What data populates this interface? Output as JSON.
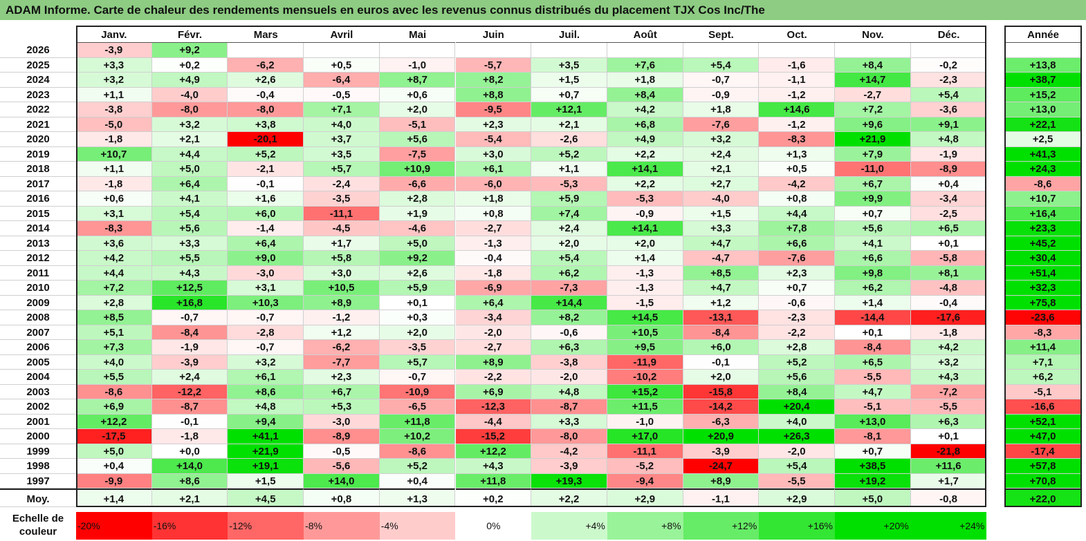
{
  "title": "ADAM Informe. Carte de chaleur des rendements mensuels en euros avec les revenus connus distribués du placement TJX Cos Inc/The",
  "chart_data": {
    "type": "heatmap",
    "title": "ADAM Informe. Carte de chaleur des rendements mensuels en euros avec les revenus connus distribués du placement TJX Cos Inc/The",
    "months": [
      "Janv.",
      "Févr.",
      "Mars",
      "Avril",
      "Mai",
      "Juin",
      "Juil.",
      "Août",
      "Sept.",
      "Oct.",
      "Nov.",
      "Déc."
    ],
    "year_header": "Année",
    "rows": [
      {
        "year": "2026",
        "months": [
          "-3,9",
          "+9,2",
          "",
          "",
          "",
          "",
          "",
          "",
          "",
          "",
          "",
          ""
        ],
        "annual": ""
      },
      {
        "year": "2025",
        "months": [
          "+3,3",
          "+0,2",
          "-6,2",
          "+0,5",
          "-1,0",
          "-5,7",
          "+3,5",
          "+7,6",
          "+5,4",
          "-1,6",
          "+8,4",
          "-0,2"
        ],
        "annual": "+13,8"
      },
      {
        "year": "2024",
        "months": [
          "+3,2",
          "+4,9",
          "+2,6",
          "-6,4",
          "+8,7",
          "+8,2",
          "+1,5",
          "+1,8",
          "-0,7",
          "-1,1",
          "+14,7",
          "-2,3"
        ],
        "annual": "+38,7"
      },
      {
        "year": "2023",
        "months": [
          "+1,1",
          "-4,0",
          "-0,4",
          "-0,5",
          "+0,6",
          "+8,8",
          "+0,7",
          "+8,4",
          "-0,9",
          "-1,2",
          "-2,7",
          "+5,4"
        ],
        "annual": "+15,2"
      },
      {
        "year": "2022",
        "months": [
          "-3,8",
          "-8,0",
          "-8,0",
          "+7,1",
          "+2,0",
          "-9,5",
          "+12,1",
          "+4,2",
          "+1,8",
          "+14,6",
          "+7,2",
          "-3,6"
        ],
        "annual": "+13,0"
      },
      {
        "year": "2021",
        "months": [
          "-5,0",
          "+3,2",
          "+3,8",
          "+4,0",
          "-5,1",
          "+2,3",
          "+2,1",
          "+6,8",
          "-7,6",
          "-1,2",
          "+9,6",
          "+9,1"
        ],
        "annual": "+22,1"
      },
      {
        "year": "2020",
        "months": [
          "-1,8",
          "+2,1",
          "-20,1",
          "+3,7",
          "+5,6",
          "-5,4",
          "-2,6",
          "+4,9",
          "+3,2",
          "-8,3",
          "+21,9",
          "+4,8"
        ],
        "annual": "+2,5"
      },
      {
        "year": "2019",
        "months": [
          "+10,7",
          "+4,4",
          "+5,2",
          "+3,5",
          "-7,5",
          "+3,0",
          "+5,2",
          "+2,2",
          "+2,4",
          "+1,3",
          "+7,9",
          "-1,9"
        ],
        "annual": "+41,3"
      },
      {
        "year": "2018",
        "months": [
          "+1,1",
          "+5,0",
          "-2,1",
          "+5,7",
          "+10,9",
          "+6,1",
          "+1,1",
          "+14,1",
          "+2,1",
          "+0,5",
          "-11,0",
          "-8,9"
        ],
        "annual": "+24,3"
      },
      {
        "year": "2017",
        "months": [
          "-1,8",
          "+6,4",
          "-0,1",
          "-2,4",
          "-6,6",
          "-6,0",
          "-5,3",
          "+2,2",
          "+2,7",
          "-4,2",
          "+6,7",
          "+0,4"
        ],
        "annual": "-8,6"
      },
      {
        "year": "2016",
        "months": [
          "+0,6",
          "+4,1",
          "+1,6",
          "-3,5",
          "+2,8",
          "+1,8",
          "+5,9",
          "-5,3",
          "-4,0",
          "+0,8",
          "+9,9",
          "-3,4"
        ],
        "annual": "+10,7"
      },
      {
        "year": "2015",
        "months": [
          "+3,1",
          "+5,4",
          "+6,0",
          "-11,1",
          "+1,9",
          "+0,8",
          "+7,4",
          "-0,9",
          "+1,5",
          "+4,4",
          "+0,7",
          "-2,5"
        ],
        "annual": "+16,4"
      },
      {
        "year": "2014",
        "months": [
          "-8,3",
          "+5,6",
          "-1,4",
          "-4,5",
          "-4,6",
          "-2,7",
          "+2,4",
          "+14,1",
          "+3,3",
          "+7,8",
          "+5,6",
          "+6,5"
        ],
        "annual": "+23,3"
      },
      {
        "year": "2013",
        "months": [
          "+3,6",
          "+3,3",
          "+6,4",
          "+1,7",
          "+5,0",
          "-1,3",
          "+2,0",
          "+2,0",
          "+4,7",
          "+6,6",
          "+4,1",
          "+0,1"
        ],
        "annual": "+45,2"
      },
      {
        "year": "2012",
        "months": [
          "+4,2",
          "+5,5",
          "+9,0",
          "+5,8",
          "+9,2",
          "-0,4",
          "+5,4",
          "+1,4",
          "-4,7",
          "-7,6",
          "+6,6",
          "-5,8"
        ],
        "annual": "+30,4"
      },
      {
        "year": "2011",
        "months": [
          "+4,4",
          "+4,3",
          "-3,0",
          "+3,0",
          "+2,6",
          "-1,8",
          "+6,2",
          "-1,3",
          "+8,5",
          "+2,3",
          "+9,8",
          "+8,1"
        ],
        "annual": "+51,4"
      },
      {
        "year": "2010",
        "months": [
          "+7,2",
          "+12,5",
          "+3,1",
          "+10,5",
          "+5,9",
          "-6,9",
          "-7,3",
          "-1,3",
          "+4,7",
          "+0,7",
          "+6,2",
          "-4,8"
        ],
        "annual": "+32,3"
      },
      {
        "year": "2009",
        "months": [
          "+2,8",
          "+16,8",
          "+10,3",
          "+8,9",
          "+0,1",
          "+6,4",
          "+14,4",
          "-1,5",
          "+1,2",
          "-0,6",
          "+1,4",
          "-0,4"
        ],
        "annual": "+75,8"
      },
      {
        "year": "2008",
        "months": [
          "+8,5",
          "-0,7",
          "-0,7",
          "-1,2",
          "+0,3",
          "-3,4",
          "+8,2",
          "+14,5",
          "-13,1",
          "-2,3",
          "-14,4",
          "-17,6"
        ],
        "annual": "-23,6"
      },
      {
        "year": "2007",
        "months": [
          "+5,1",
          "-8,4",
          "-2,8",
          "+1,2",
          "+2,0",
          "-2,0",
          "-0,6",
          "+10,5",
          "-8,4",
          "-2,2",
          "+0,1",
          "-1,8"
        ],
        "annual": "-8,3"
      },
      {
        "year": "2006",
        "months": [
          "+7,3",
          "-1,9",
          "-0,7",
          "-6,2",
          "-3,5",
          "-2,7",
          "+6,3",
          "+9,5",
          "+6,0",
          "+2,8",
          "-8,4",
          "+4,2"
        ],
        "annual": "+11,4"
      },
      {
        "year": "2005",
        "months": [
          "+4,0",
          "-3,9",
          "+3,2",
          "-7,7",
          "+5,7",
          "+8,9",
          "-3,8",
          "-11,9",
          "-0,1",
          "+5,2",
          "+6,5",
          "+3,2"
        ],
        "annual": "+7,1"
      },
      {
        "year": "2004",
        "months": [
          "+5,5",
          "+2,4",
          "+6,1",
          "+2,3",
          "-0,7",
          "-2,2",
          "-2,0",
          "-10,2",
          "+2,0",
          "+5,6",
          "-5,5",
          "+4,3"
        ],
        "annual": "+6,2"
      },
      {
        "year": "2003",
        "months": [
          "-8,6",
          "-12,2",
          "+8,6",
          "+6,7",
          "-10,9",
          "+6,9",
          "+4,8",
          "+15,2",
          "-15,8",
          "+8,4",
          "+4,7",
          "-7,2"
        ],
        "annual": "-5,1"
      },
      {
        "year": "2002",
        "months": [
          "+6,9",
          "-8,7",
          "+4,8",
          "+5,3",
          "-6,5",
          "-12,3",
          "-8,7",
          "+11,5",
          "-14,2",
          "+20,4",
          "-5,1",
          "-5,5"
        ],
        "annual": "-16,6"
      },
      {
        "year": "2001",
        "months": [
          "+12,2",
          "-0,1",
          "+9,4",
          "-3,0",
          "+11,8",
          "-4,4",
          "+3,3",
          "-1,0",
          "-6,3",
          "+4,0",
          "+13,0",
          "+6,3"
        ],
        "annual": "+52,1"
      },
      {
        "year": "2000",
        "months": [
          "-17,5",
          "-1,8",
          "+41,1",
          "-8,9",
          "+10,2",
          "-15,2",
          "-8,0",
          "+17,0",
          "+20,9",
          "+26,3",
          "-8,1",
          "+0,1"
        ],
        "annual": "+47,0"
      },
      {
        "year": "1999",
        "months": [
          "+5,0",
          "+0,0",
          "+21,9",
          "-0,5",
          "-8,6",
          "+12,2",
          "-4,2",
          "-11,1",
          "-3,9",
          "-2,0",
          "+0,7",
          "-21,8"
        ],
        "annual": "-17,4"
      },
      {
        "year": "1998",
        "months": [
          "+0,4",
          "+14,0",
          "+19,1",
          "-5,6",
          "+5,2",
          "+4,3",
          "-3,9",
          "-5,2",
          "-24,7",
          "+5,4",
          "+38,5",
          "+11,6"
        ],
        "annual": "+57,8"
      },
      {
        "year": "1997",
        "months": [
          "-9,9",
          "+8,6",
          "+1,5",
          "+14,0",
          "+0,4",
          "+11,8",
          "+19,3",
          "-9,4",
          "+8,9",
          "-5,5",
          "+19,2",
          "+1,7"
        ],
        "annual": "+70,8"
      }
    ],
    "average": {
      "label": "Moy.",
      "months": [
        "+1,4",
        "+2,1",
        "+4,5",
        "+0,8",
        "+1,3",
        "+0,2",
        "+2,2",
        "+2,9",
        "-1,1",
        "+2,9",
        "+5,0",
        "-0,8"
      ],
      "annual": "+22,0"
    },
    "scale": {
      "label": "Echelle de couleur",
      "steps": [
        "-20%",
        "-16%",
        "-12%",
        "-8%",
        "-4%",
        "0%",
        "+4%",
        "+8%",
        "+12%",
        "+16%",
        "+20%",
        "+24%"
      ],
      "step_values": [
        -20,
        -16,
        -12,
        -8,
        -4,
        0,
        4,
        8,
        12,
        16,
        20,
        24
      ]
    },
    "colors": {
      "negative": "#ff0000",
      "positive": "#00e000",
      "neutral": "#ffffff",
      "title_bg": "#8dcc82"
    }
  }
}
